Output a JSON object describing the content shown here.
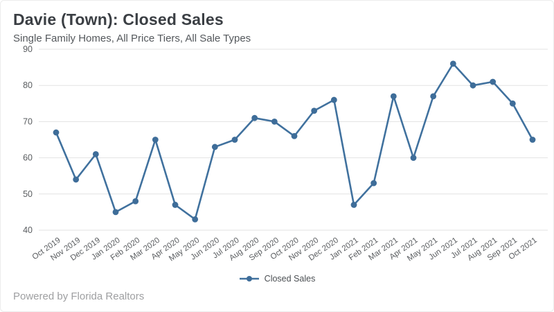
{
  "header": {
    "title": "Davie (Town): Closed Sales",
    "subtitle": "Single Family Homes, All Price Tiers, All Sale Types"
  },
  "legend": {
    "label": "Closed Sales"
  },
  "footer": {
    "text": "Powered by Florida Realtors"
  },
  "colors": {
    "line": "#40719e",
    "marker": "#3e6d99",
    "grid": "#e3e3e3",
    "axis_label": "#5a5d60",
    "title": "#3b3f44",
    "subtitle": "#54585c",
    "footer": "#9e9fa1",
    "background": "#ffffff"
  },
  "chart_data": {
    "type": "line",
    "title": "Davie (Town): Closed Sales",
    "subtitle": "Single Family Homes, All Price Tiers, All Sale Types",
    "categories": [
      "Oct 2019",
      "Nov 2019",
      "Dec 2019",
      "Jan 2020",
      "Feb 2020",
      "Mar 2020",
      "Apr 2020",
      "May 2020",
      "Jun 2020",
      "Jul 2020",
      "Aug 2020",
      "Sep 2020",
      "Oct 2020",
      "Nov 2020",
      "Dec 2020",
      "Jan 2021",
      "Feb 2021",
      "Mar 2021",
      "Apr 2021",
      "May 2021",
      "Jun 2021",
      "Jul 2021",
      "Aug 2021",
      "Sep 2021",
      "Oct 2021"
    ],
    "series": [
      {
        "name": "Closed Sales",
        "values": [
          67,
          54,
          61,
          45,
          48,
          65,
          47,
          43,
          63,
          65,
          71,
          70,
          66,
          73,
          76,
          47,
          53,
          77,
          60,
          77,
          86,
          80,
          81,
          75,
          65
        ]
      }
    ],
    "xlabel": "",
    "ylabel": "",
    "ylim": [
      40,
      90
    ],
    "y_ticks": [
      40,
      50,
      60,
      70,
      80,
      90
    ],
    "grid": "horizontal",
    "legend_position": "bottom-center",
    "marker": "circle",
    "x_label_rotation": -35
  }
}
